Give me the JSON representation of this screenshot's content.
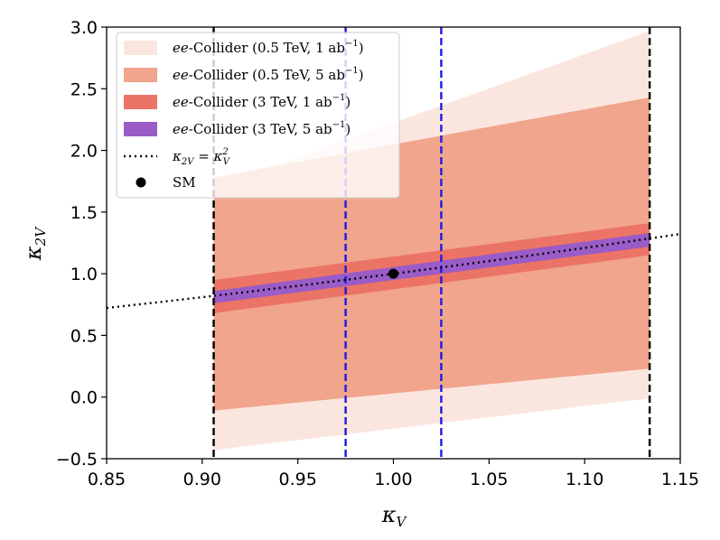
{
  "chart_data": {
    "type": "area",
    "title": "",
    "xlabel": "κ",
    "xlabel_sub": "V",
    "ylabel": "κ",
    "ylabel_sub": "2V",
    "xlim": [
      0.85,
      1.15
    ],
    "ylim": [
      -0.5,
      3.0
    ],
    "xticks": [
      "0.85",
      "0.90",
      "0.95",
      "1.00",
      "1.05",
      "1.10",
      "1.15"
    ],
    "yticks": [
      "−0.5",
      "0.0",
      "0.5",
      "1.0",
      "1.5",
      "2.0",
      "2.5",
      "3.0"
    ],
    "xtick_values": [
      0.85,
      0.9,
      0.95,
      1.0,
      1.05,
      1.1,
      1.15
    ],
    "ytick_values": [
      -0.5,
      0.0,
      0.5,
      1.0,
      1.5,
      2.0,
      2.5,
      3.0
    ],
    "bands": [
      {
        "name": "ee-Collider (0.5 TeV, 1 ab⁻¹)",
        "prefix": "ee",
        "label": "-Collider (0.5 TeV, 1 ab",
        "sup": "−1",
        "suffix": ")",
        "color": "#fbe6df",
        "x": [
          0.906,
          1.134
        ],
        "lower": [
          -0.43,
          -0.01
        ],
        "upper": [
          1.7,
          2.97
        ]
      },
      {
        "name": "ee-Collider (0.5 TeV, 5 ab⁻¹)",
        "prefix": "ee",
        "label": "-Collider (0.5 TeV, 5 ab",
        "sup": "−1",
        "suffix": ")",
        "color": "#f0a58c",
        "x": [
          0.906,
          1.134
        ],
        "lower": [
          -0.11,
          0.23
        ],
        "upper": [
          1.78,
          2.43
        ]
      },
      {
        "name": "ee-Collider (3 TeV, 1 ab⁻¹)",
        "prefix": "ee",
        "label": "-Collider (3 TeV, 1 ab",
        "sup": "−1",
        "suffix": ")",
        "color": "#ec7466",
        "x": [
          0.906,
          1.134
        ],
        "lower": [
          0.68,
          1.15
        ],
        "upper": [
          0.95,
          1.41
        ]
      },
      {
        "name": "ee-Collider (3 TeV, 5 ab⁻¹)",
        "prefix": "ee",
        "label": "-Collider (3 TeV, 5 ab",
        "sup": "−1",
        "suffix": ")",
        "color": "#9a5cc6",
        "x": [
          0.906,
          1.134
        ],
        "lower": [
          0.76,
          1.22
        ],
        "upper": [
          0.86,
          1.33
        ]
      }
    ],
    "reference_curve": {
      "name": "κ2V = κV²",
      "formula": "x^2",
      "color": "#000000",
      "style": "dotted"
    },
    "reference_legend": {
      "lhs": "κ",
      "lhs_sub": "2V",
      "eq": " = κ",
      "rhs_sub": "V",
      "rhs_sup": "2"
    },
    "sm_point": {
      "name": "SM",
      "x": 1.0,
      "y": 1.0,
      "color": "#000000"
    },
    "vlines": [
      {
        "x": 0.906,
        "color": "#000000",
        "style": "dashed"
      },
      {
        "x": 1.134,
        "color": "#000000",
        "style": "dashed"
      },
      {
        "x": 0.975,
        "color": "#1a1ae6",
        "style": "dashed"
      },
      {
        "x": 1.025,
        "color": "#1a1ae6",
        "style": "dashed"
      }
    ],
    "legend_location": "top-left"
  }
}
